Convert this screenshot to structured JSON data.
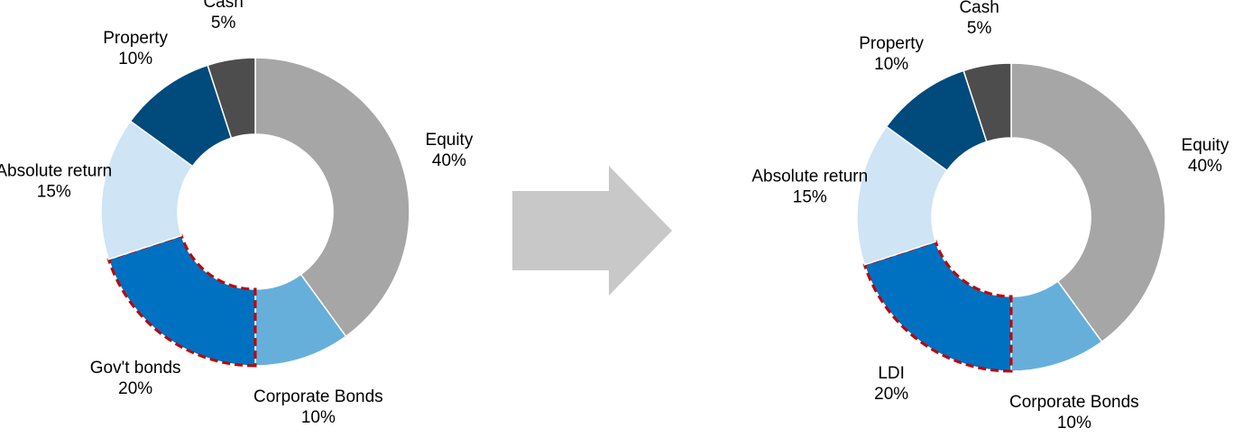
{
  "chart_data": [
    {
      "type": "donut",
      "categories": [
        "Equity",
        "Corporate Bonds",
        "Gov't bonds",
        "Absolute return",
        "Property",
        "Cash"
      ],
      "values": [
        40,
        10,
        20,
        15,
        10,
        5
      ],
      "value_labels": [
        "40%",
        "10%",
        "20%",
        "15%",
        "10%",
        "5%"
      ],
      "colors": [
        "#a6a6a6",
        "#66afdb",
        "#0070c0",
        "#cfe4f5",
        "#004a7c",
        "#4d4d4d"
      ],
      "highlight_index": 2
    },
    {
      "type": "donut",
      "categories": [
        "Equity",
        "Corporate Bonds",
        "LDI",
        "Absolute return",
        "Property",
        "Cash"
      ],
      "values": [
        40,
        10,
        20,
        15,
        10,
        5
      ],
      "value_labels": [
        "40%",
        "10%",
        "20%",
        "15%",
        "10%",
        "5%"
      ],
      "colors": [
        "#a6a6a6",
        "#66afdb",
        "#0070c0",
        "#cfe4f5",
        "#004a7c",
        "#4d4d4d"
      ],
      "highlight_index": 2
    }
  ]
}
